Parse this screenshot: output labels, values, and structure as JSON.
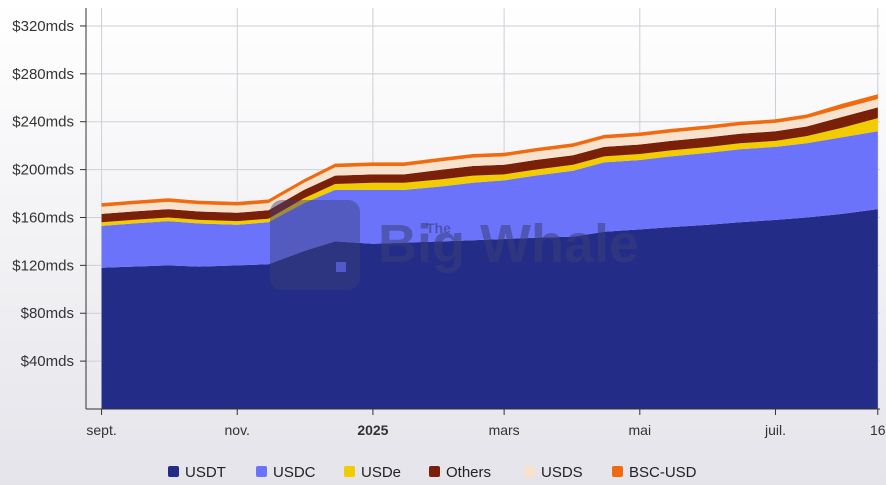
{
  "chart_data": {
    "type": "area",
    "stacked": true,
    "x": [
      "2024-09-01",
      "2024-09-15",
      "2024-10-01",
      "2024-10-15",
      "2024-11-01",
      "2024-11-15",
      "2024-12-01",
      "2024-12-15",
      "2025-01-01",
      "2025-01-15",
      "2025-02-01",
      "2025-02-15",
      "2025-03-01",
      "2025-03-15",
      "2025-04-01",
      "2025-04-15",
      "2025-05-01",
      "2025-05-15",
      "2025-06-01",
      "2025-06-15",
      "2025-07-01",
      "2025-07-15",
      "2025-07-31",
      "2025-08-16"
    ],
    "x_tick_labels": [
      {
        "date": "2024-09-01",
        "label": "sept.",
        "bold": false
      },
      {
        "date": "2024-11-01",
        "label": "nov.",
        "bold": false
      },
      {
        "date": "2025-01-01",
        "label": "2025",
        "bold": true
      },
      {
        "date": "2025-03-01",
        "label": "mars",
        "bold": false
      },
      {
        "date": "2025-05-01",
        "label": "mai",
        "bold": false
      },
      {
        "date": "2025-07-01",
        "label": "juil.",
        "bold": false
      },
      {
        "date": "2025-08-16",
        "label": "16",
        "bold": false
      }
    ],
    "y_tick_labels": [
      {
        "value": 40,
        "label": "$40mds"
      },
      {
        "value": 80,
        "label": "$80mds"
      },
      {
        "value": 120,
        "label": "$120mds"
      },
      {
        "value": 160,
        "label": "$160mds"
      },
      {
        "value": 200,
        "label": "$200mds"
      },
      {
        "value": 240,
        "label": "$240mds"
      },
      {
        "value": 280,
        "label": "$280mds"
      },
      {
        "value": 320,
        "label": "$320mds"
      }
    ],
    "ylim": [
      0,
      335
    ],
    "xlim": [
      "2024-08-25",
      "2025-08-17"
    ],
    "grid": true,
    "legend_position": "bottom",
    "series": [
      {
        "name": "USDT",
        "color": "#232c86",
        "values": [
          118,
          119,
          120,
          119,
          120,
          121,
          132,
          140,
          138,
          139,
          140,
          141,
          142,
          143,
          144,
          148,
          150,
          152,
          154,
          156,
          158,
          160,
          163,
          167
        ]
      },
      {
        "name": "USDC",
        "color": "#6b73fa",
        "values": [
          35,
          36,
          37,
          36,
          34,
          35,
          40,
          43,
          45,
          44,
          46,
          48,
          49,
          52,
          55,
          58,
          58,
          59,
          60,
          61,
          61,
          62,
          64,
          65
        ]
      },
      {
        "name": "USDe",
        "color": "#f0cc00",
        "values": [
          3,
          3,
          3,
          3,
          3,
          3,
          4,
          5,
          6,
          6,
          6,
          6,
          5,
          5,
          5,
          5,
          5,
          5,
          5,
          5,
          5,
          6,
          8,
          11
        ]
      },
      {
        "name": "Others",
        "color": "#7a1f08",
        "values": [
          7,
          7,
          7,
          7,
          7,
          7,
          7,
          7,
          7,
          7,
          8,
          8,
          8,
          8,
          8,
          8,
          8,
          8,
          8,
          8,
          8,
          8,
          9,
          9
        ]
      },
      {
        "name": "USDS",
        "color": "#f7e2cd",
        "values": [
          6,
          6,
          6,
          6,
          6,
          6,
          6,
          7,
          7,
          7,
          7,
          7,
          7,
          7,
          7,
          7,
          7,
          7,
          7,
          7,
          7,
          7,
          7,
          7
        ]
      },
      {
        "name": "BSC-USD",
        "color": "#f06a10",
        "values": [
          3,
          3,
          3,
          3,
          3,
          3,
          3,
          3,
          3,
          3,
          3,
          3,
          3,
          3,
          3,
          3,
          3,
          3,
          3,
          3,
          3,
          3,
          4,
          4
        ]
      }
    ]
  },
  "watermark": {
    "top": "The",
    "text": "Big Whale"
  }
}
